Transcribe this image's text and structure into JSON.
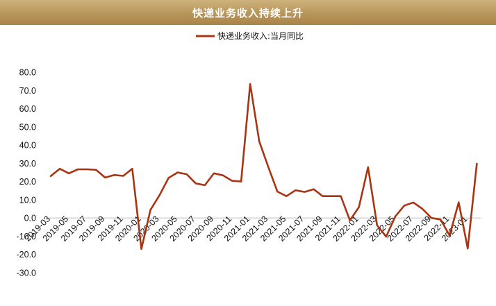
{
  "header": {
    "title": "快递业务收入持续上升"
  },
  "colors": {
    "title_bar": "#b8955a",
    "series": "#a93412",
    "axis": "#bfbfbf"
  },
  "chart_data": {
    "type": "line",
    "title": "快递业务收入持续上升",
    "xlabel": "",
    "ylabel": "",
    "ylim": [
      -30,
      80
    ],
    "yticks": [
      "80.0",
      "70.0",
      "60.0",
      "50.0",
      "40.0",
      "30.0",
      "20.0",
      "10.0",
      "0.0",
      "-10.0",
      "-20.0",
      "-30.0"
    ],
    "grid": false,
    "legend": "top-center",
    "x": [
      "2019-03",
      "2019-04",
      "2019-05",
      "2019-06",
      "2019-07",
      "2019-08",
      "2019-09",
      "2019-10",
      "2019-11",
      "2019-12",
      "2020-01",
      "2020-02",
      "2020-03",
      "2020-04",
      "2020-05",
      "2020-06",
      "2020-07",
      "2020-08",
      "2020-09",
      "2020-10",
      "2020-11",
      "2020-12",
      "2021-01",
      "2021-02",
      "2021-03",
      "2021-04",
      "2021-05",
      "2021-06",
      "2021-07",
      "2021-08",
      "2021-09",
      "2021-10",
      "2021-11",
      "2021-12",
      "2022-01",
      "2022-02",
      "2022-03",
      "2022-04",
      "2022-05",
      "2022-06",
      "2022-07",
      "2022-08",
      "2022-09",
      "2022-10",
      "2022-11",
      "2022-12",
      "2023-01",
      "2023-02"
    ],
    "xtick_labels": [
      "2019-03",
      "2019-05",
      "2019-07",
      "2019-09",
      "2019-11",
      "2020-01",
      "2020-03",
      "2020-05",
      "2020-07",
      "2020-09",
      "2020-11",
      "2021-01",
      "2021-03",
      "2021-05",
      "2021-07",
      "2021-09",
      "2021-11",
      "2022-01",
      "2022-03",
      "2022-05",
      "2022-07",
      "2022-09",
      "2022-11",
      "2023-01"
    ],
    "series": [
      {
        "name": "快递业务收入:当月同比",
        "values": [
          23.0,
          27.0,
          24.5,
          26.7,
          26.7,
          26.4,
          22.2,
          23.6,
          23.1,
          27.0,
          -17.0,
          4.5,
          12.5,
          22.0,
          25.0,
          24.0,
          19.0,
          18.0,
          24.5,
          23.4,
          20.4,
          20.0,
          73.5,
          42.0,
          28.0,
          14.5,
          12.0,
          15.2,
          14.3,
          15.8,
          12.0,
          12.0,
          12.0,
          -1.3,
          6.0,
          27.9,
          -4.0,
          -10.2,
          0.8,
          6.8,
          8.5,
          5.0,
          0.0,
          -0.8,
          -9.6,
          8.6,
          -16.7,
          29.8
        ]
      }
    ]
  }
}
